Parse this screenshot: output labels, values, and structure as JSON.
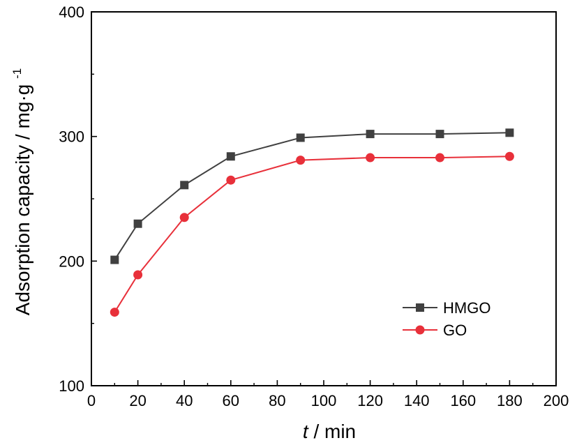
{
  "chart_data": {
    "type": "line",
    "x": [
      10,
      20,
      40,
      60,
      90,
      120,
      150,
      180
    ],
    "series": [
      {
        "name": "HMGO",
        "color": "#404040",
        "marker": "square",
        "values": [
          201,
          230,
          261,
          284,
          299,
          302,
          302,
          303
        ]
      },
      {
        "name": "GO",
        "color": "#e8303a",
        "marker": "circle",
        "values": [
          159,
          189,
          235,
          265,
          281,
          283,
          283,
          284
        ]
      }
    ],
    "xlabel": {
      "italic": "t",
      "rest": "/ min"
    },
    "ylabel": {
      "main": "Adsorption capacity / mg·g",
      "sup": "-1"
    },
    "xlim": [
      0,
      200
    ],
    "ylim": [
      100,
      400
    ],
    "xticks": [
      "0",
      "20",
      "40",
      "60",
      "80",
      "100",
      "120",
      "140",
      "160",
      "180",
      "200"
    ],
    "yticks": [
      "100",
      "200",
      "300",
      "400"
    ],
    "grid": false,
    "legend_position": "lower-right"
  }
}
